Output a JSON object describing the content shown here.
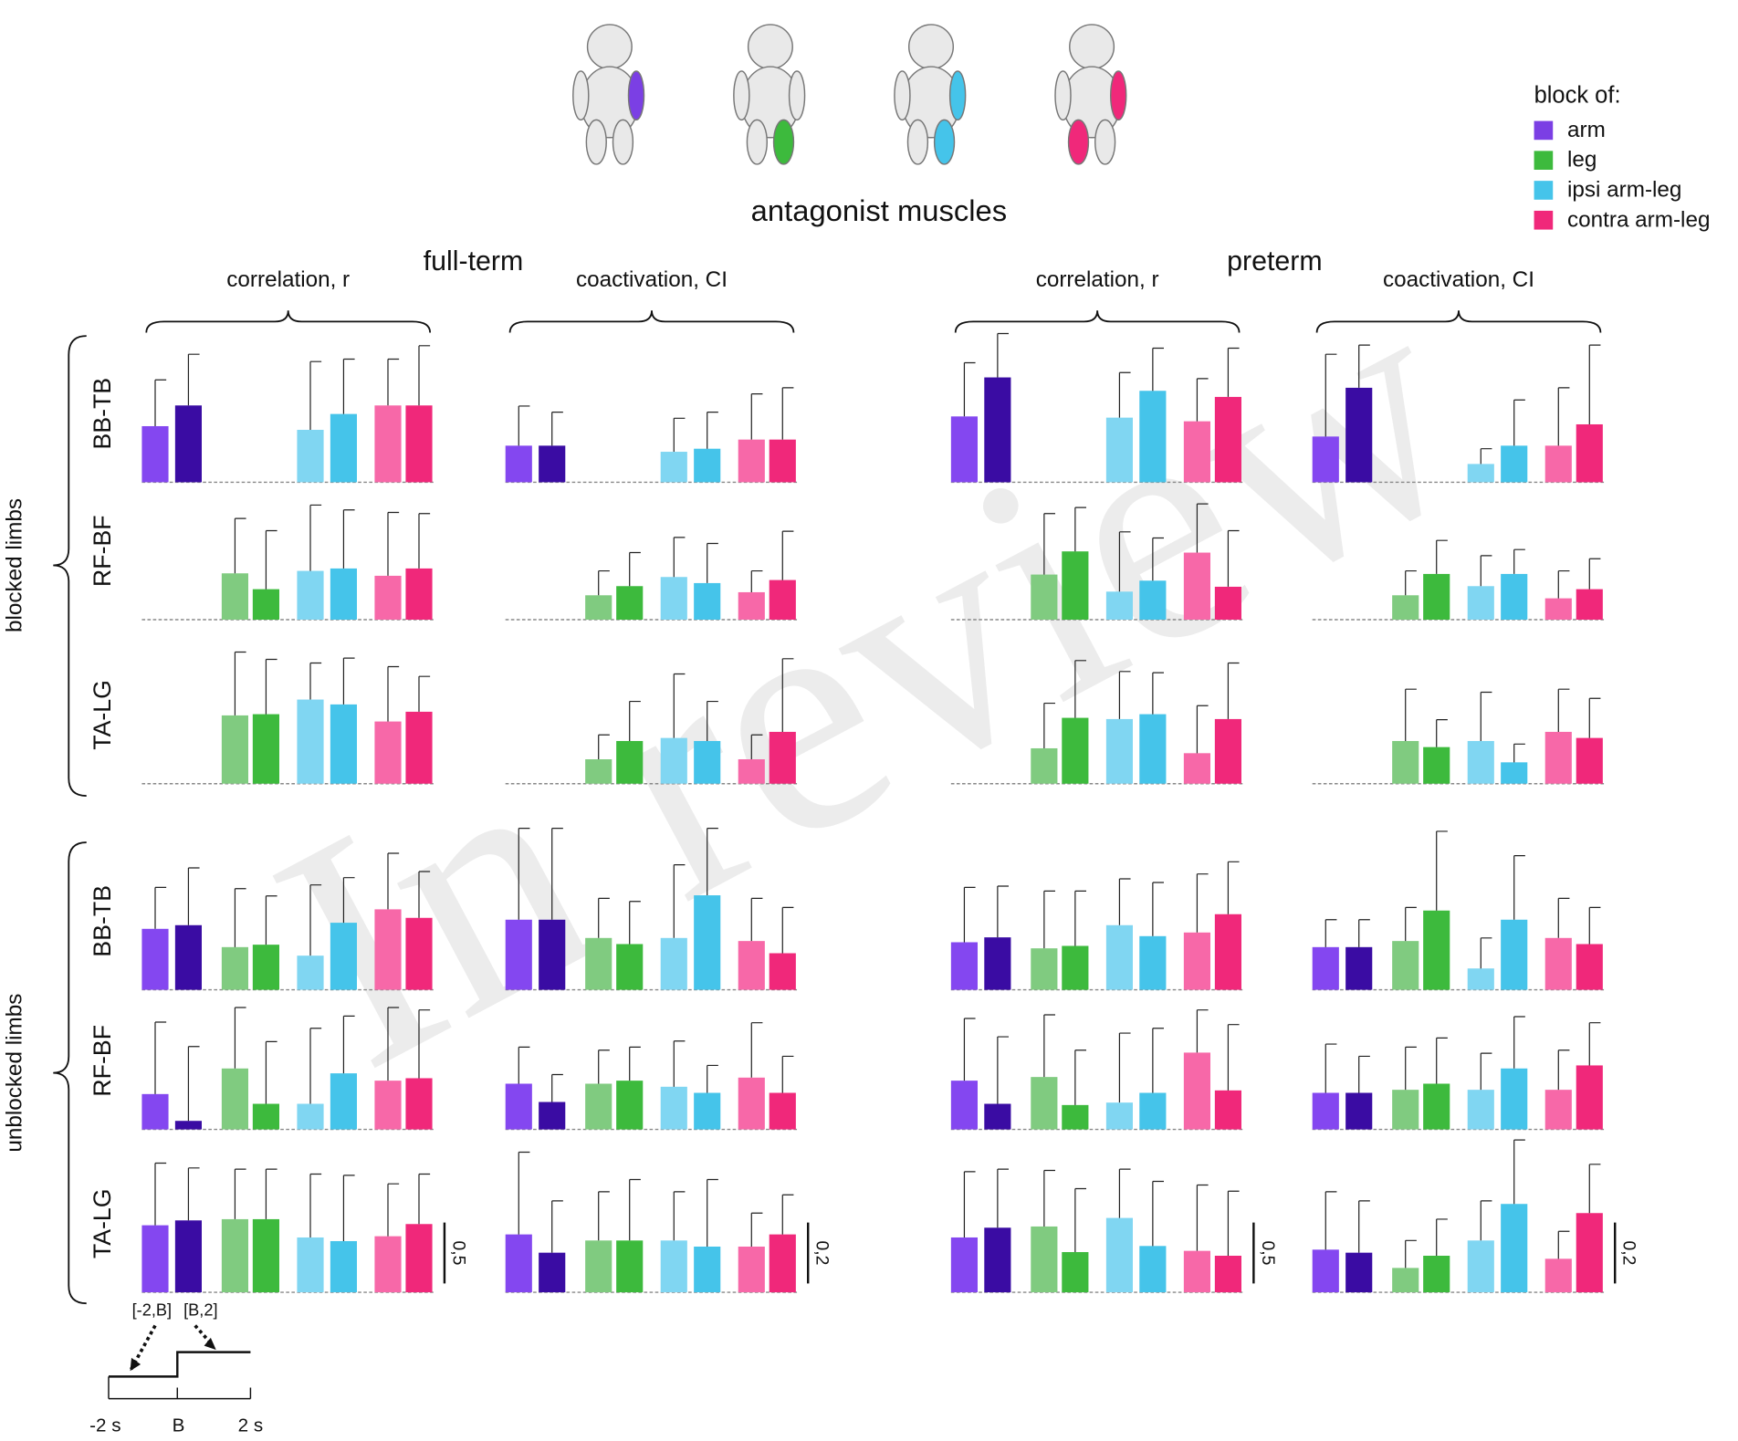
{
  "chart_data": {
    "type": "bar-grid",
    "title": "antagonist muscles",
    "legend_title": "block of:",
    "watermark": "In review",
    "series": [
      {
        "name": "arm",
        "color": "#7b3fe4",
        "colors": [
          "#8447f0",
          "#3a0ca3"
        ]
      },
      {
        "name": "leg",
        "color": "#3dba3d",
        "colors": [
          "#80cb80",
          "#3dba3d"
        ]
      },
      {
        "name": "ipsi arm-leg",
        "color": "#45c4ea",
        "colors": [
          "#80d6f2",
          "#45c4ea"
        ]
      },
      {
        "name": "contra arm-leg",
        "color": "#f0287a",
        "colors": [
          "#f768a8",
          "#f0287a"
        ]
      }
    ],
    "sections": [
      "blocked limbs",
      "unblocked limbs"
    ],
    "row_labels": [
      "BB-TB",
      "RF-BF",
      "TA-LG",
      "BB-TB",
      "RF-BF",
      "TA-LG"
    ],
    "groups": [
      {
        "name": "full-term",
        "panels": [
          {
            "label": "correlation, r",
            "scale": {
              "value": 0.5,
              "label": "0,5"
            },
            "rows": [
              {
                "values": [
                  0.46,
                  0.63,
                  null,
                  null,
                  0.43,
                  0.56,
                  0.63,
                  0.63
                ],
                "errors": [
                  0.38,
                  0.42,
                  null,
                  null,
                  0.56,
                  0.45,
                  0.38,
                  0.49
                ]
              },
              {
                "values": [
                  null,
                  null,
                  0.38,
                  0.25,
                  0.4,
                  0.42,
                  0.36,
                  0.42
                ],
                "errors": [
                  null,
                  null,
                  0.45,
                  0.48,
                  0.54,
                  0.48,
                  0.52,
                  0.45
                ]
              },
              {
                "values": [
                  null,
                  null,
                  0.56,
                  0.57,
                  0.69,
                  0.65,
                  0.51,
                  0.59
                ],
                "errors": [
                  null,
                  null,
                  0.52,
                  0.45,
                  0.3,
                  0.38,
                  0.45,
                  0.29
                ]
              },
              {
                "values": [
                  0.5,
                  0.53,
                  0.35,
                  0.37,
                  0.28,
                  0.55,
                  0.66,
                  0.59
                ],
                "errors": [
                  0.34,
                  0.47,
                  0.48,
                  0.4,
                  0.58,
                  0.37,
                  0.46,
                  0.38
                ]
              },
              {
                "values": [
                  0.29,
                  0.07,
                  0.5,
                  0.21,
                  0.21,
                  0.46,
                  0.4,
                  0.42
                ],
                "errors": [
                  0.59,
                  0.61,
                  0.5,
                  0.51,
                  0.62,
                  0.47,
                  0.6,
                  0.56
                ]
              },
              {
                "values": [
                  0.55,
                  0.59,
                  0.6,
                  0.6,
                  0.45,
                  0.42,
                  0.46,
                  0.56
                ],
                "errors": [
                  0.51,
                  0.43,
                  0.41,
                  0.41,
                  0.52,
                  0.54,
                  0.43,
                  0.41
                ]
              }
            ]
          },
          {
            "label": "coactivation, CI",
            "scale": {
              "value": 0.2,
              "label": "0,2"
            },
            "rows": [
              {
                "values": [
                  0.12,
                  0.12,
                  null,
                  null,
                  0.1,
                  0.11,
                  0.14,
                  0.14
                ],
                "errors": [
                  0.13,
                  0.11,
                  null,
                  null,
                  0.11,
                  0.12,
                  0.15,
                  0.17
                ]
              },
              {
                "values": [
                  null,
                  null,
                  0.08,
                  0.11,
                  0.14,
                  0.12,
                  0.09,
                  0.13
                ],
                "errors": [
                  null,
                  null,
                  0.08,
                  0.11,
                  0.13,
                  0.13,
                  0.07,
                  0.16
                ]
              },
              {
                "values": [
                  null,
                  null,
                  0.08,
                  0.14,
                  0.15,
                  0.14,
                  0.08,
                  0.17
                ],
                "errors": [
                  null,
                  null,
                  0.08,
                  0.13,
                  0.21,
                  0.13,
                  0.08,
                  0.24
                ]
              },
              {
                "values": [
                  0.23,
                  0.23,
                  0.17,
                  0.15,
                  0.17,
                  0.31,
                  0.16,
                  0.12
                ],
                "errors": [
                  0.3,
                  0.3,
                  0.13,
                  0.14,
                  0.24,
                  0.22,
                  0.14,
                  0.15
                ]
              },
              {
                "values": [
                  0.15,
                  0.09,
                  0.15,
                  0.16,
                  0.14,
                  0.12,
                  0.17,
                  0.12
                ],
                "errors": [
                  0.12,
                  0.09,
                  0.11,
                  0.11,
                  0.15,
                  0.09,
                  0.18,
                  0.12
                ]
              },
              {
                "values": [
                  0.19,
                  0.13,
                  0.17,
                  0.17,
                  0.17,
                  0.15,
                  0.15,
                  0.19
                ],
                "errors": [
                  0.27,
                  0.17,
                  0.16,
                  0.2,
                  0.16,
                  0.22,
                  0.11,
                  0.13
                ]
              }
            ]
          }
        ]
      },
      {
        "name": "preterm",
        "panels": [
          {
            "label": "correlation, r",
            "scale": {
              "value": 0.5,
              "label": "0,5"
            },
            "rows": [
              {
                "values": [
                  0.54,
                  0.86,
                  null,
                  null,
                  0.53,
                  0.75,
                  0.5,
                  0.7
                ],
                "errors": [
                  0.44,
                  0.36,
                  null,
                  null,
                  0.37,
                  0.35,
                  0.35,
                  0.4
                ]
              },
              {
                "values": [
                  null,
                  null,
                  0.37,
                  0.56,
                  0.23,
                  0.32,
                  0.55,
                  0.27
                ],
                "errors": [
                  null,
                  null,
                  0.5,
                  0.36,
                  0.49,
                  0.35,
                  0.4,
                  0.46
                ]
              },
              {
                "values": [
                  null,
                  null,
                  0.29,
                  0.54,
                  0.53,
                  0.57,
                  0.25,
                  0.53
                ],
                "errors": [
                  null,
                  null,
                  0.37,
                  0.47,
                  0.39,
                  0.34,
                  0.39,
                  0.46
                ]
              },
              {
                "values": [
                  0.39,
                  0.43,
                  0.34,
                  0.36,
                  0.53,
                  0.44,
                  0.47,
                  0.62
                ],
                "errors": [
                  0.45,
                  0.42,
                  0.47,
                  0.45,
                  0.38,
                  0.44,
                  0.48,
                  0.43
                ]
              },
              {
                "values": [
                  0.4,
                  0.21,
                  0.43,
                  0.2,
                  0.22,
                  0.3,
                  0.63,
                  0.32
                ],
                "errors": [
                  0.51,
                  0.55,
                  0.51,
                  0.45,
                  0.57,
                  0.53,
                  0.35,
                  0.54
                ]
              },
              {
                "values": [
                  0.45,
                  0.53,
                  0.54,
                  0.33,
                  0.61,
                  0.38,
                  0.34,
                  0.3
                ],
                "errors": [
                  0.54,
                  0.48,
                  0.46,
                  0.52,
                  0.4,
                  0.53,
                  0.54,
                  0.53
                ]
              }
            ]
          },
          {
            "label": "coactivation, CI",
            "scale": {
              "value": 0.2,
              "label": "0,2"
            },
            "rows": [
              {
                "values": [
                  0.15,
                  0.31,
                  null,
                  null,
                  0.06,
                  0.12,
                  0.12,
                  0.19
                ],
                "errors": [
                  0.27,
                  0.14,
                  null,
                  null,
                  0.05,
                  0.15,
                  0.19,
                  0.26
                ]
              },
              {
                "values": [
                  null,
                  null,
                  0.08,
                  0.15,
                  0.11,
                  0.15,
                  0.07,
                  0.1
                ],
                "errors": [
                  null,
                  null,
                  0.08,
                  0.11,
                  0.1,
                  0.08,
                  0.09,
                  0.1
                ]
              },
              {
                "values": [
                  null,
                  null,
                  0.14,
                  0.12,
                  0.14,
                  0.07,
                  0.17,
                  0.15
                ],
                "errors": [
                  null,
                  null,
                  0.17,
                  0.09,
                  0.16,
                  0.06,
                  0.14,
                  0.13
                ]
              },
              {
                "values": [
                  0.14,
                  0.14,
                  0.16,
                  0.26,
                  0.07,
                  0.23,
                  0.17,
                  0.15
                ],
                "errors": [
                  0.09,
                  0.09,
                  0.11,
                  0.26,
                  0.1,
                  0.21,
                  0.13,
                  0.12
                ]
              },
              {
                "values": [
                  0.12,
                  0.12,
                  0.13,
                  0.15,
                  0.13,
                  0.2,
                  0.13,
                  0.21
                ],
                "errors": [
                  0.16,
                  0.12,
                  0.14,
                  0.15,
                  0.12,
                  0.17,
                  0.13,
                  0.14
                ]
              },
              {
                "values": [
                  0.14,
                  0.13,
                  0.08,
                  0.12,
                  0.17,
                  0.29,
                  0.11,
                  0.26
                ],
                "errors": [
                  0.19,
                  0.17,
                  0.09,
                  0.12,
                  0.13,
                  0.21,
                  0.09,
                  0.16
                ]
              }
            ]
          }
        ]
      }
    ],
    "timeline": {
      "labels": [
        "[-2,B]",
        "[B,2]"
      ],
      "ticks": [
        "-2 s",
        "B",
        "2 s"
      ]
    }
  }
}
